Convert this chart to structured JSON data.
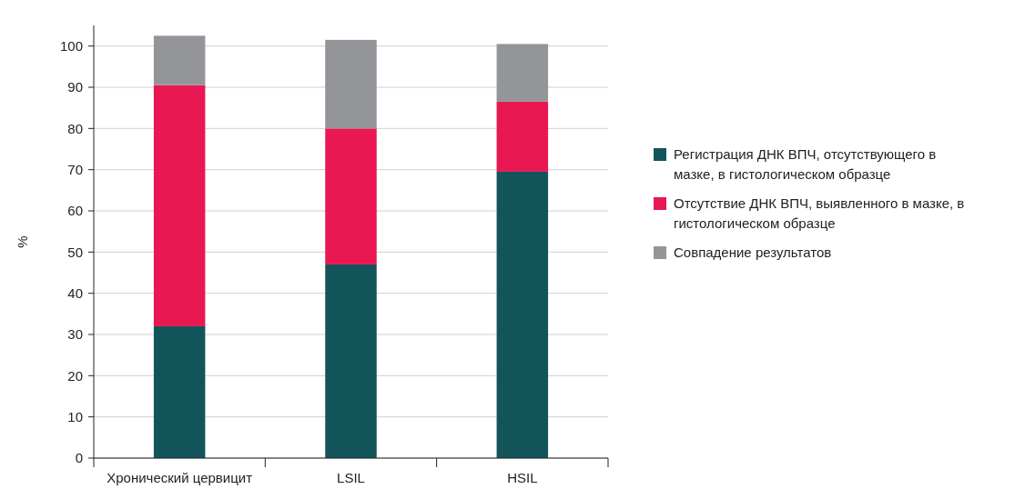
{
  "chart_data": {
    "type": "bar",
    "stacked": true,
    "ylabel": "%",
    "categories": [
      "Хронический цервицит",
      "LSIL",
      "HSIL"
    ],
    "series": [
      {
        "name": "Регистрация ДНК ВПЧ, отсутствующего в мазке, в гистологическом образце",
        "color": "#13545b",
        "values": [
          32,
          47,
          69.5
        ]
      },
      {
        "name": "Отсутствие ДНК ВПЧ, выявленного в мазке, в гистологическом образце",
        "color": "#e91853",
        "values": [
          58.5,
          33,
          17
        ]
      },
      {
        "name": "Совпадение результатов",
        "color": "#939598",
        "values": [
          12,
          21.5,
          14
        ]
      }
    ],
    "ylim": [
      0,
      105
    ],
    "yticks": [
      0,
      10,
      20,
      30,
      40,
      50,
      60,
      70,
      80,
      90,
      100
    ],
    "grid": "y",
    "legend": "right"
  }
}
